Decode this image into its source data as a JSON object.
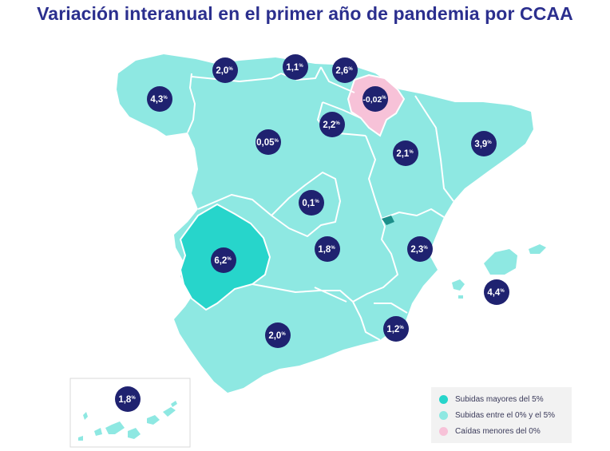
{
  "title": "Variación interanual en el primer año de pandemia por CCAA",
  "colors": {
    "high": "#27d5cb",
    "mid": "#8ee8e2",
    "negative": "#f7c2d8",
    "bubble": "#1f2270",
    "border": "#ffffff",
    "title": "#2b2f8e"
  },
  "legend": [
    {
      "label": "Subidas mayores del 5%",
      "color": "#27d5cb"
    },
    {
      "label": "Subidas entre el 0% y el 5%",
      "color": "#8ee8e2"
    },
    {
      "label": "Caídas menores del 0%",
      "color": "#f7c2d8"
    }
  ],
  "regions": [
    {
      "name": "Galicia",
      "value": "4,3",
      "unit": "%"
    },
    {
      "name": "Asturias",
      "value": "2,0",
      "unit": "%"
    },
    {
      "name": "Cantabria",
      "value": "1,1",
      "unit": "%"
    },
    {
      "name": "País Vasco",
      "value": "2,6",
      "unit": "%"
    },
    {
      "name": "Navarra",
      "value": "-0,02",
      "unit": "%"
    },
    {
      "name": "La Rioja",
      "value": "2,2",
      "unit": "%"
    },
    {
      "name": "Castilla y León",
      "value": "0,05",
      "unit": "%"
    },
    {
      "name": "Aragón",
      "value": "2,1",
      "unit": "%"
    },
    {
      "name": "Cataluña",
      "value": "3,9",
      "unit": "%"
    },
    {
      "name": "Madrid",
      "value": "0,1",
      "unit": "%"
    },
    {
      "name": "Extremadura",
      "value": "6,2",
      "unit": "%"
    },
    {
      "name": "Castilla-La Mancha",
      "value": "1,8",
      "unit": "%"
    },
    {
      "name": "Comunidad Valenciana",
      "value": "2,3",
      "unit": "%"
    },
    {
      "name": "Islas Baleares",
      "value": "4,4",
      "unit": "%"
    },
    {
      "name": "Andalucía",
      "value": "2,0",
      "unit": "%"
    },
    {
      "name": "Región de Murcia",
      "value": "1,2",
      "unit": "%"
    },
    {
      "name": "Canarias",
      "value": "1,8",
      "unit": "%"
    }
  ]
}
